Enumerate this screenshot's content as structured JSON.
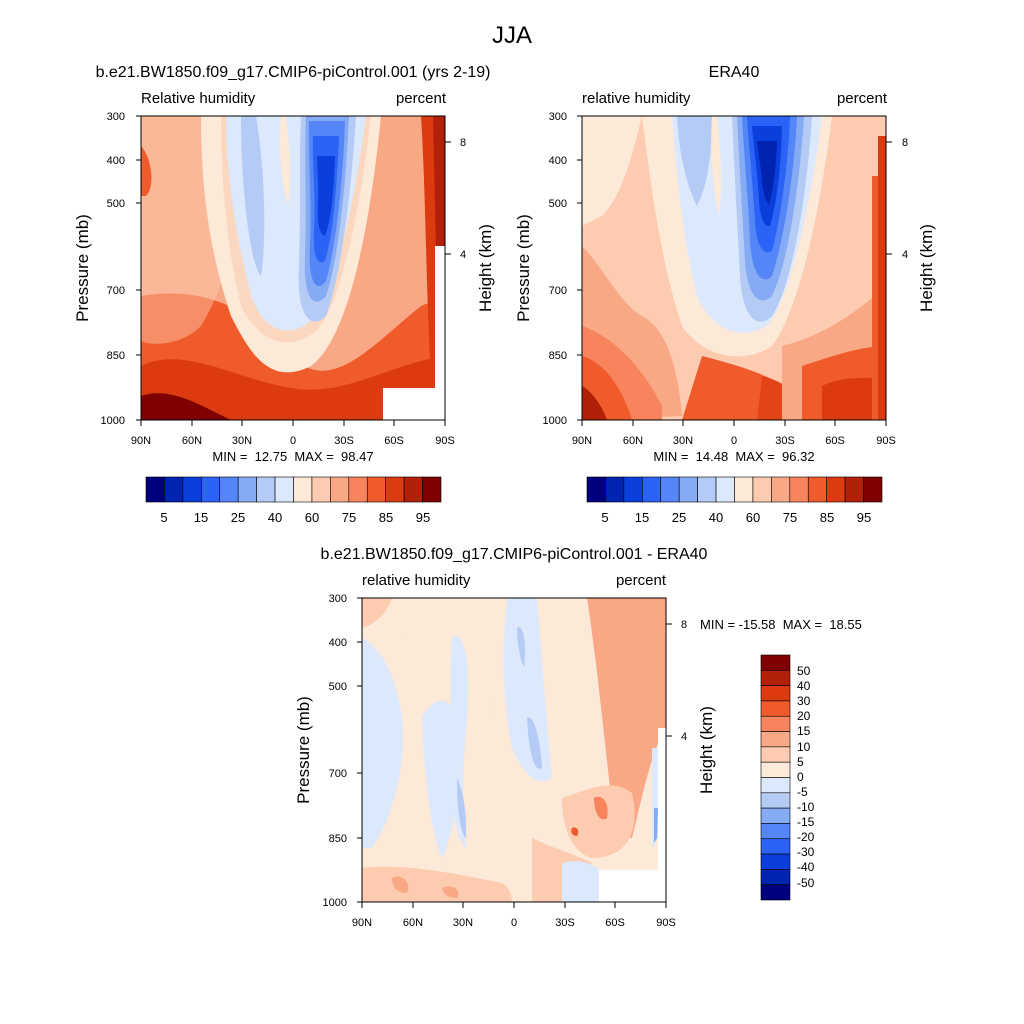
{
  "suptitle": "JJA",
  "chart_data": [
    {
      "type": "heatmap",
      "title": "b.e21.BW1850.f09_g17.CMIP6-piControl.001 (yrs 2-19)",
      "left_label": "Relative humidity",
      "right_label": "percent",
      "ylabel": "Pressure (mb)",
      "ylabel_right": "Height (km)",
      "xticks": [
        "90N",
        "60N",
        "30N",
        "0",
        "30S",
        "60S",
        "90S"
      ],
      "yticks": [
        "300",
        "400",
        "500",
        "700",
        "850",
        "1000"
      ],
      "yticks_right": [
        "8",
        "4"
      ],
      "ylim": [
        1000,
        300
      ],
      "minmax_text": "MIN =  12.75  MAX =  98.47",
      "min": 12.75,
      "max": 98.47,
      "colorbar_labels": [
        "5",
        "15",
        "25",
        "40",
        "60",
        "75",
        "85",
        "95"
      ]
    },
    {
      "type": "heatmap",
      "title": "ERA40",
      "left_label": "relative humidity",
      "right_label": "percent",
      "ylabel": "Pressure (mb)",
      "ylabel_right": "Height (km)",
      "xticks": [
        "90N",
        "60N",
        "30N",
        "0",
        "30S",
        "60S",
        "90S"
      ],
      "yticks": [
        "300",
        "400",
        "500",
        "700",
        "850",
        "1000"
      ],
      "yticks_right": [
        "8",
        "4"
      ],
      "ylim": [
        1000,
        300
      ],
      "minmax_text": "MIN =  14.48  MAX =  96.32",
      "min": 14.48,
      "max": 96.32,
      "colorbar_labels": [
        "5",
        "15",
        "25",
        "40",
        "60",
        "75",
        "85",
        "95"
      ]
    },
    {
      "type": "heatmap",
      "title": "b.e21.BW1850.f09_g17.CMIP6-piControl.001 - ERA40",
      "left_label": "relative humidity",
      "right_label": "percent",
      "ylabel": "Pressure (mb)",
      "ylabel_right": "Height (km)",
      "xticks": [
        "90N",
        "60N",
        "30N",
        "0",
        "30S",
        "60S",
        "90S"
      ],
      "yticks": [
        "300",
        "400",
        "500",
        "700",
        "850",
        "1000"
      ],
      "yticks_right": [
        "8",
        "4"
      ],
      "ylim": [
        1000,
        300
      ],
      "minmax_text": "MIN = -15.58  MAX =  18.55",
      "min": -15.58,
      "max": 18.55,
      "colorbar_labels": [
        "50",
        "40",
        "30",
        "20",
        "15",
        "10",
        "5",
        "0",
        "-5",
        "-10",
        "-15",
        "-20",
        "-30",
        "-40",
        "-50"
      ]
    }
  ],
  "colors": {
    "scale": [
      "#00007f",
      "#0023b0",
      "#0a3fdc",
      "#2a63f5",
      "#5486f7",
      "#86abf5",
      "#b4cbf5",
      "#dce8fb",
      "#fde9d8",
      "#fccbb0",
      "#f9a886",
      "#f7845c",
      "#f05b2c",
      "#dc3a10",
      "#b22007",
      "#7f0000"
    ]
  }
}
